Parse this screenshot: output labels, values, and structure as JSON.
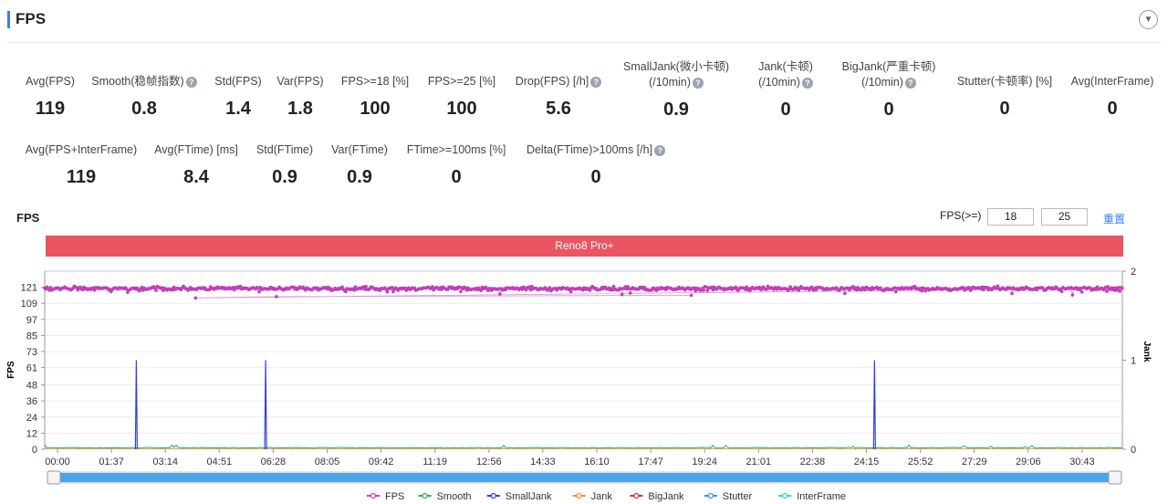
{
  "header": {
    "title": "FPS"
  },
  "metrics_row1": [
    {
      "label": "Avg(FPS)",
      "value": "119",
      "help": false
    },
    {
      "label": "Smooth(稳帧指数)",
      "value": "0.8",
      "help": true
    },
    {
      "label": "Std(FPS)",
      "value": "1.4",
      "help": false
    },
    {
      "label": "Var(FPS)",
      "value": "1.8",
      "help": false
    },
    {
      "label": "FPS>=18 [%]",
      "value": "100",
      "help": false
    },
    {
      "label": "FPS>=25 [%]",
      "value": "100",
      "help": false
    },
    {
      "label": "Drop(FPS) [/h]",
      "value": "5.6",
      "help": true
    },
    {
      "label": "SmallJank(微小卡顿)",
      "label2": "(/10min)",
      "value": "0.9",
      "help": true
    },
    {
      "label": "Jank(卡顿)",
      "label2": "(/10min)",
      "value": "0",
      "help": true
    },
    {
      "label": "BigJank(严重卡顿)",
      "label2": "(/10min)",
      "value": "0",
      "help": true
    },
    {
      "label": "Stutter(卡顿率) [%]",
      "value": "0",
      "help": false
    },
    {
      "label": "Avg(InterFrame)",
      "value": "0",
      "help": false
    }
  ],
  "metrics_row2": [
    {
      "label": "Avg(FPS+InterFrame)",
      "value": "119",
      "help": false
    },
    {
      "label": "Avg(FTime) [ms]",
      "value": "8.4",
      "help": false
    },
    {
      "label": "Std(FTime)",
      "value": "0.9",
      "help": false
    },
    {
      "label": "Var(FTime)",
      "value": "0.9",
      "help": false
    },
    {
      "label": "FTime>=100ms [%]",
      "value": "0",
      "help": false
    },
    {
      "label": "Delta(FTime)>100ms [/h]",
      "value": "0",
      "help": true
    }
  ],
  "chart_controls": {
    "title": "FPS",
    "filter_label": "FPS(>=)",
    "threshold1": "18",
    "threshold2": "25",
    "reset_label": "重置",
    "device": "Reno8 Pro+"
  },
  "chart_data": {
    "type": "line",
    "title": "FPS",
    "ylabel": "FPS",
    "y2label": "Jank",
    "ylim": [
      0,
      133
    ],
    "y2lim": [
      0,
      2
    ],
    "yticks": [
      0,
      12,
      24,
      36,
      48,
      61,
      73,
      85,
      97,
      109,
      121
    ],
    "y2ticks": [
      0,
      1,
      2
    ],
    "xticks": [
      "00:00",
      "01:37",
      "03:14",
      "04:51",
      "06:28",
      "08:05",
      "09:42",
      "11:19",
      "12:56",
      "14:33",
      "16:10",
      "17:47",
      "19:24",
      "21:01",
      "22:38",
      "24:15",
      "25:52",
      "27:29",
      "29:06",
      "30:43"
    ],
    "x_max_seconds": 2000,
    "series": [
      {
        "name": "FPS",
        "color": "#c23fb8",
        "axis": "left",
        "baseline": 120,
        "noise": 1.4,
        "dips": [
          [
            280,
            113
          ],
          [
            430,
            114
          ],
          [
            1200,
            115
          ]
        ]
      },
      {
        "name": "Smooth",
        "color": "#3aa655",
        "axis": "left",
        "baseline": 0.8
      },
      {
        "name": "SmallJank",
        "color": "#2f3fe0",
        "axis": "right",
        "events": [
          170,
          410,
          1540
        ]
      },
      {
        "name": "Jank",
        "color": "#f28b30",
        "axis": "right",
        "events": []
      },
      {
        "name": "BigJank",
        "color": "#e03030",
        "axis": "right",
        "events": []
      },
      {
        "name": "Stutter",
        "color": "#3d8ef0",
        "axis": "left",
        "baseline": 0
      },
      {
        "name": "InterFrame",
        "color": "#2fd0e0",
        "axis": "left",
        "baseline": 0
      }
    ],
    "grid": true,
    "legend_position": "bottom"
  }
}
